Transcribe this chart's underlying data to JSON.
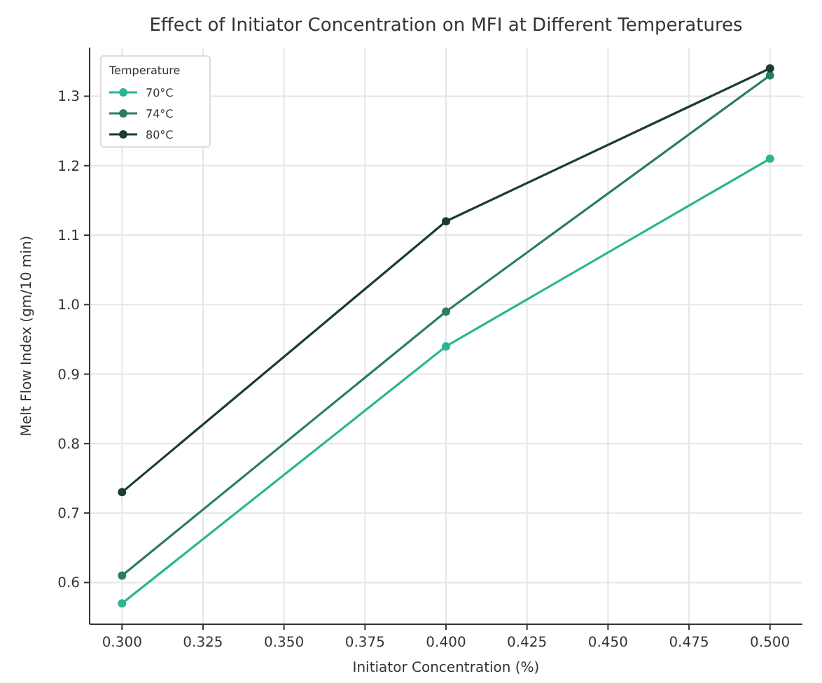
{
  "chart_data": {
    "type": "line",
    "title": "Effect of Initiator Concentration on MFI at Different Temperatures",
    "xlabel": "Initiator Concentration (%)",
    "ylabel": "Melt Flow Index (gm/10 min)",
    "legend_title": "Temperature",
    "x": [
      0.3,
      0.4,
      0.5
    ],
    "series": [
      {
        "name": "70°C",
        "color": "#2bb592",
        "values": [
          0.57,
          0.94,
          1.21
        ]
      },
      {
        "name": "74°C",
        "color": "#2a7d64",
        "values": [
          0.61,
          0.99,
          1.33
        ]
      },
      {
        "name": "80°C",
        "color": "#1b3d31",
        "values": [
          0.73,
          1.12,
          1.34
        ]
      }
    ],
    "xlim": [
      0.29,
      0.51
    ],
    "xticks": [
      {
        "value": 0.3,
        "label": "0.300"
      },
      {
        "value": 0.325,
        "label": "0.325"
      },
      {
        "value": 0.35,
        "label": "0.350"
      },
      {
        "value": 0.375,
        "label": "0.375"
      },
      {
        "value": 0.4,
        "label": "0.400"
      },
      {
        "value": 0.425,
        "label": "0.425"
      },
      {
        "value": 0.45,
        "label": "0.450"
      },
      {
        "value": 0.475,
        "label": "0.475"
      },
      {
        "value": 0.5,
        "label": "0.500"
      }
    ],
    "ylim": [
      0.54,
      1.37
    ],
    "yticks": [
      0.6,
      0.7,
      0.8,
      0.9,
      {
        "value": 1.0,
        "label": "1.0"
      },
      1.1,
      1.2,
      1.3
    ],
    "grid": true,
    "legend": "top left",
    "marker": "circle",
    "line_style": "solid"
  }
}
